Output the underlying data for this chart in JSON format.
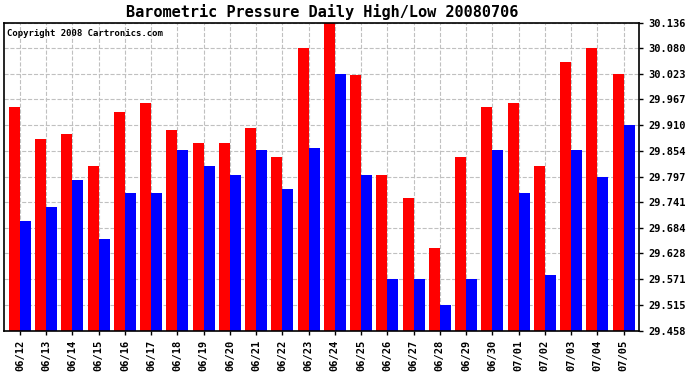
{
  "title": "Barometric Pressure Daily High/Low 20080706",
  "copyright": "Copyright 2008 Cartronics.com",
  "dates": [
    "06/12",
    "06/13",
    "06/14",
    "06/15",
    "06/16",
    "06/17",
    "06/18",
    "06/19",
    "06/20",
    "06/21",
    "06/22",
    "06/23",
    "06/24",
    "06/25",
    "06/26",
    "06/27",
    "06/28",
    "06/29",
    "06/30",
    "07/01",
    "07/02",
    "07/03",
    "07/04",
    "07/05"
  ],
  "highs": [
    29.95,
    29.88,
    29.89,
    29.82,
    29.94,
    29.96,
    29.9,
    29.87,
    29.87,
    29.905,
    29.84,
    30.08,
    30.136,
    30.02,
    29.8,
    29.75,
    29.64,
    29.84,
    29.95,
    29.96,
    29.82,
    30.05,
    30.08,
    30.023
  ],
  "lows": [
    29.7,
    29.73,
    29.79,
    29.66,
    29.76,
    29.76,
    29.855,
    29.82,
    29.8,
    29.855,
    29.77,
    29.86,
    30.023,
    29.8,
    29.572,
    29.572,
    29.515,
    29.572,
    29.855,
    29.76,
    29.58,
    29.855,
    29.797,
    29.91
  ],
  "high_color": "#ff0000",
  "low_color": "#0000ff",
  "bg_color": "#ffffff",
  "plot_bg_color": "#ffffff",
  "grid_color": "#c0c0c0",
  "ymin": 29.458,
  "ymax": 30.136,
  "yticks": [
    29.458,
    29.515,
    29.571,
    29.628,
    29.684,
    29.741,
    29.797,
    29.854,
    29.91,
    29.967,
    30.023,
    30.08,
    30.136
  ],
  "title_fontsize": 11,
  "tick_fontsize": 7.5,
  "bar_width": 0.42
}
